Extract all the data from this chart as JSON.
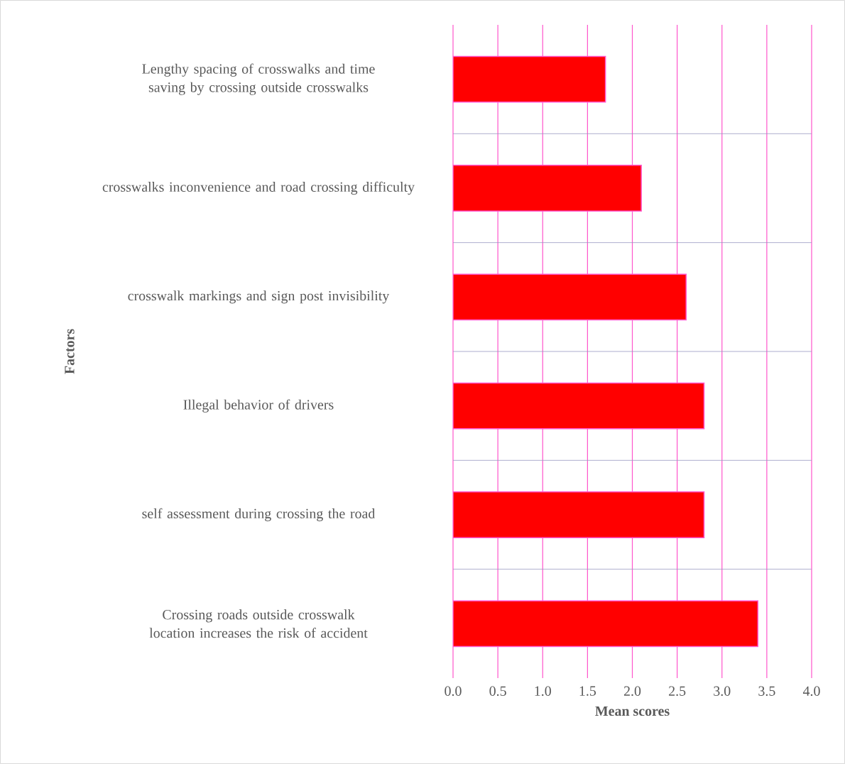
{
  "chart_data": {
    "type": "bar",
    "orientation": "horizontal",
    "categories": [
      "Lengthy spacing of crosswalks and time saving by crossing outside crosswalks",
      "crosswalks inconvenience and road crossing difficulty",
      "crosswalk markings and sign post invisibility",
      "Illegal behavior of drivers",
      "self assessment during crossing the road",
      "Crossing roads outside crosswalk location increases the risk of accident"
    ],
    "values": [
      1.7,
      2.1,
      2.6,
      2.8,
      2.8,
      3.4
    ],
    "color": "#ff0000",
    "xlabel": "Mean scores",
    "ylabel": "Factors",
    "xlim": [
      0,
      4
    ],
    "xticks": [
      {
        "value": 0,
        "label": "0.0"
      },
      {
        "value": 0.5,
        "label": "0.5"
      },
      {
        "value": 1,
        "label": "1.0"
      },
      {
        "value": 1.5,
        "label": "1.5"
      },
      {
        "value": 2,
        "label": "2.0"
      },
      {
        "value": 2.5,
        "label": "2.5"
      },
      {
        "value": 3,
        "label": "3.0"
      },
      {
        "value": 3.5,
        "label": "3.5"
      },
      {
        "value": 4,
        "label": "4.0"
      }
    ],
    "grid": "x"
  }
}
